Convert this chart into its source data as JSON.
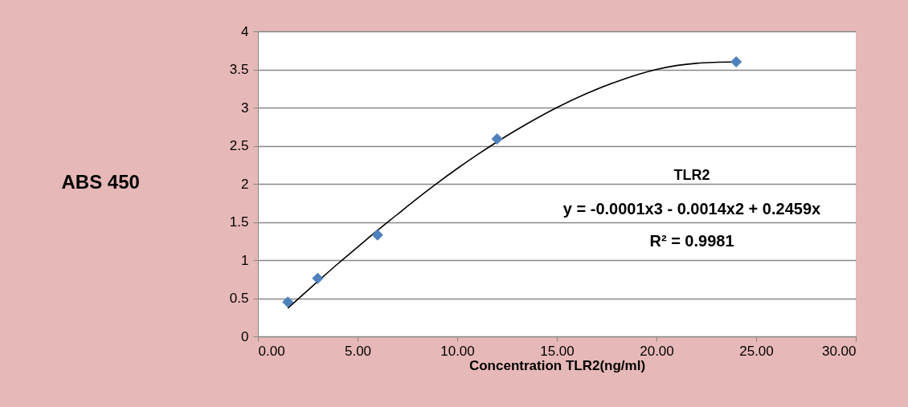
{
  "chart_data": {
    "type": "scatter",
    "xlabel": "Concentration TLR2(ng/ml)",
    "ylabel": "ABS 450",
    "annotations": [
      "TLR2",
      "y = -0.0001x3 - 0.0014x2 + 0.2459x",
      "R² = 0.9981"
    ],
    "xlim": [
      0,
      30
    ],
    "xticks": [
      {
        "value": 0,
        "label": "0.00"
      },
      {
        "value": 5,
        "label": "5.00"
      },
      {
        "value": 10,
        "label": "10.00"
      },
      {
        "value": 15,
        "label": "15.00"
      },
      {
        "value": 20,
        "label": "20.00"
      },
      {
        "value": 25,
        "label": "25.00"
      },
      {
        "value": 30,
        "label": "30.00"
      }
    ],
    "ylim": [
      0,
      4
    ],
    "yticks": [
      0,
      0.5,
      1,
      1.5,
      2,
      2.5,
      3,
      3.5,
      4
    ],
    "grid": "y",
    "series": [
      {
        "marker": "diamond",
        "color": "#4f81bd",
        "x": [
          1.5,
          3,
          6,
          12,
          24
        ],
        "values": [
          0.45,
          0.76,
          1.33,
          2.59,
          3.6
        ]
      },
      {
        "type": "line",
        "marker": "none",
        "color": "#000000",
        "x": [
          1.5,
          3,
          4,
          5,
          6,
          7,
          8,
          9,
          10,
          11,
          12,
          13,
          15,
          18,
          20,
          22,
          24
        ],
        "values": [
          0.37,
          0.72,
          0.95,
          1.17,
          1.39,
          1.6,
          1.81,
          2.01,
          2.2,
          2.38,
          2.55,
          2.71,
          3.0,
          3.34,
          3.5,
          3.58,
          3.6
        ]
      }
    ]
  }
}
